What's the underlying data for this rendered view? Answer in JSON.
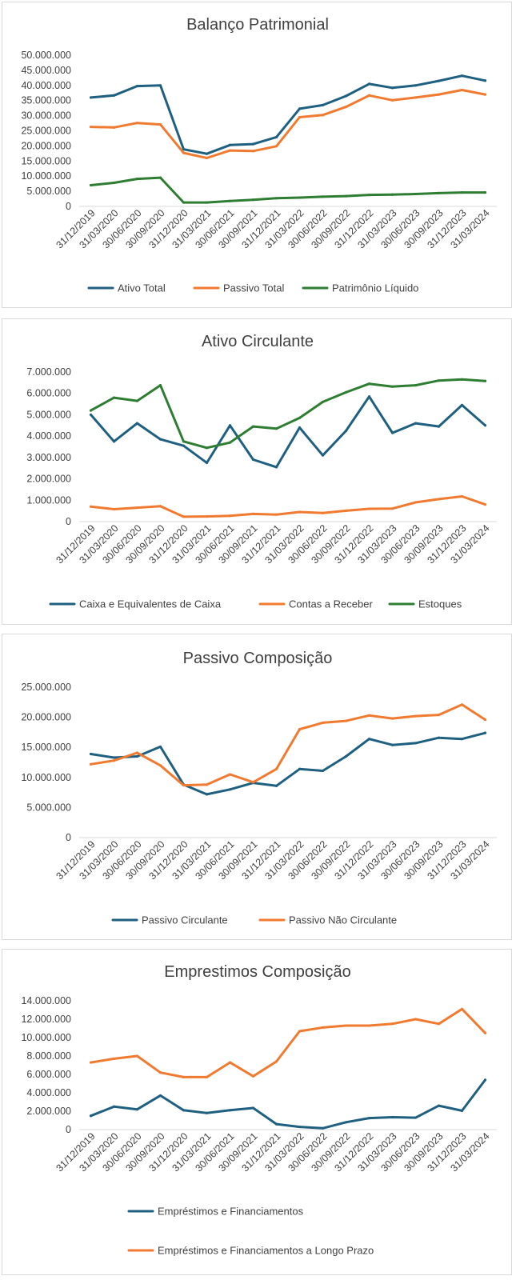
{
  "chart_data": [
    {
      "type": "line",
      "title": "Balanço Patrimonial",
      "categories": [
        "31/12/2019",
        "31/03/2020",
        "30/06/2020",
        "30/09/2020",
        "31/12/2020",
        "31/03/2021",
        "30/06/2021",
        "30/09/2021",
        "31/12/2021",
        "31/03/2022",
        "30/06/2022",
        "30/09/2022",
        "31/12/2022",
        "31/03/2023",
        "30/06/2023",
        "30/09/2023",
        "31/12/2023",
        "31/03/2024"
      ],
      "ylim": [
        0,
        50000000
      ],
      "ytick_labels": [
        "0",
        "5.000.000",
        "10.000.000",
        "15.000.000",
        "20.000.000",
        "25.000.000",
        "30.000.000",
        "35.000.000",
        "40.000.000",
        "45.000.000",
        "50.000.000"
      ],
      "legend_position": "bottom",
      "grid": false,
      "series": [
        {
          "name": "Ativo Total",
          "color": "#1f5f80",
          "values": [
            36000000,
            36700000,
            39800000,
            40000000,
            18900000,
            17400000,
            20300000,
            20600000,
            22900000,
            32300000,
            33500000,
            36500000,
            40500000,
            39200000,
            40000000,
            41500000,
            43200000,
            41600000
          ]
        },
        {
          "name": "Passivo Total",
          "color": "#f07a30",
          "values": [
            26300000,
            26100000,
            27600000,
            27100000,
            17700000,
            16000000,
            18500000,
            18300000,
            19900000,
            29500000,
            30200000,
            32900000,
            36700000,
            35100000,
            36000000,
            37000000,
            38500000,
            37000000
          ]
        },
        {
          "name": "Patrimônio Líquido",
          "color": "#2e7d32",
          "values": [
            7000000,
            7800000,
            9100000,
            9500000,
            1300000,
            1300000,
            1800000,
            2200000,
            2700000,
            2900000,
            3200000,
            3400000,
            3800000,
            3900000,
            4100000,
            4400000,
            4600000,
            4600000
          ]
        }
      ]
    },
    {
      "type": "line",
      "title": "Ativo Circulante",
      "categories": [
        "31/12/2019",
        "31/03/2020",
        "30/06/2020",
        "30/09/2020",
        "31/12/2020",
        "31/03/2021",
        "30/06/2021",
        "30/09/2021",
        "31/12/2021",
        "31/03/2022",
        "30/06/2022",
        "30/09/2022",
        "31/12/2022",
        "31/03/2023",
        "30/06/2023",
        "30/09/2023",
        "31/12/2023",
        "31/03/2024"
      ],
      "ylim": [
        0,
        7000000
      ],
      "ytick_labels": [
        "0",
        "1.000.000",
        "2.000.000",
        "3.000.000",
        "4.000.000",
        "5.000.000",
        "6.000.000",
        "7.000.000"
      ],
      "legend_position": "bottom",
      "grid": false,
      "series": [
        {
          "name": "Caixa e Equivalentes de Caixa",
          "color": "#1f5f80",
          "values": [
            5000000,
            3750000,
            4600000,
            3850000,
            3550000,
            2750000,
            4500000,
            2900000,
            2550000,
            4400000,
            3100000,
            4250000,
            5850000,
            4150000,
            4600000,
            4450000,
            5450000,
            4500000
          ]
        },
        {
          "name": "Contas a Receber",
          "color": "#f07a30",
          "values": [
            700000,
            580000,
            650000,
            720000,
            230000,
            240000,
            270000,
            360000,
            330000,
            450000,
            400000,
            510000,
            600000,
            610000,
            900000,
            1050000,
            1180000,
            800000
          ]
        },
        {
          "name": "Estoques",
          "color": "#2e7d32",
          "values": [
            5200000,
            5800000,
            5650000,
            6380000,
            3750000,
            3450000,
            3700000,
            4450000,
            4350000,
            4850000,
            5600000,
            6050000,
            6450000,
            6320000,
            6380000,
            6600000,
            6650000,
            6580000
          ]
        }
      ]
    },
    {
      "type": "line",
      "title": "Passivo Composição",
      "categories": [
        "31/12/2019",
        "31/03/2020",
        "30/06/2020",
        "30/09/2020",
        "31/12/2020",
        "31/03/2021",
        "30/06/2021",
        "30/09/2021",
        "31/12/2021",
        "31/03/2022",
        "30/06/2022",
        "30/09/2022",
        "31/12/2022",
        "31/03/2023",
        "30/06/2023",
        "30/09/2023",
        "31/12/2023",
        "31/03/2024"
      ],
      "ylim": [
        0,
        25000000
      ],
      "ytick_labels": [
        "0",
        "5.000.000",
        "10.000.000",
        "15.000.000",
        "20.000.000",
        "25.000.000"
      ],
      "legend_position": "bottom",
      "grid": false,
      "series": [
        {
          "name": "Passivo Circulante",
          "color": "#1f5f80",
          "values": [
            13900000,
            13300000,
            13500000,
            15100000,
            8800000,
            7200000,
            8000000,
            9100000,
            8600000,
            11400000,
            11100000,
            13500000,
            16400000,
            15400000,
            15700000,
            16600000,
            16400000,
            17400000
          ]
        },
        {
          "name": "Passivo Não Circulante",
          "color": "#f07a30",
          "values": [
            12200000,
            12800000,
            14100000,
            12000000,
            8700000,
            8800000,
            10500000,
            9200000,
            11400000,
            18000000,
            19100000,
            19400000,
            20300000,
            19800000,
            20200000,
            20400000,
            22100000,
            19600000
          ]
        }
      ]
    },
    {
      "type": "line",
      "title": "Emprestimos Composição",
      "categories": [
        "31/12/2019",
        "31/03/2020",
        "30/06/2020",
        "30/09/2020",
        "31/12/2020",
        "31/03/2021",
        "30/06/2021",
        "30/09/2021",
        "31/12/2021",
        "31/03/2022",
        "30/06/2022",
        "30/09/2022",
        "31/12/2022",
        "31/03/2023",
        "30/06/2023",
        "30/09/2023",
        "31/12/2023",
        "31/03/2024"
      ],
      "ylim": [
        0,
        14000000
      ],
      "ytick_labels": [
        "0",
        "2.000.000",
        "4.000.000",
        "6.000.000",
        "8.000.000",
        "10.000.000",
        "12.000.000",
        "14.000.000"
      ],
      "legend_position": "bottom",
      "grid": false,
      "series": [
        {
          "name": "Empréstimos e Financiamentos",
          "color": "#1f5f80",
          "values": [
            1500000,
            2500000,
            2200000,
            3700000,
            2100000,
            1800000,
            2100000,
            2350000,
            600000,
            300000,
            150000,
            800000,
            1250000,
            1350000,
            1300000,
            2600000,
            2050000,
            5400000
          ]
        },
        {
          "name": "Empréstimos e Financiamentos a Longo Prazo",
          "color": "#f07a30",
          "values": [
            7300000,
            7700000,
            8000000,
            6200000,
            5700000,
            5700000,
            7300000,
            5800000,
            7400000,
            10700000,
            11100000,
            11300000,
            11300000,
            11500000,
            12000000,
            11500000,
            13100000,
            10500000
          ]
        }
      ]
    }
  ]
}
